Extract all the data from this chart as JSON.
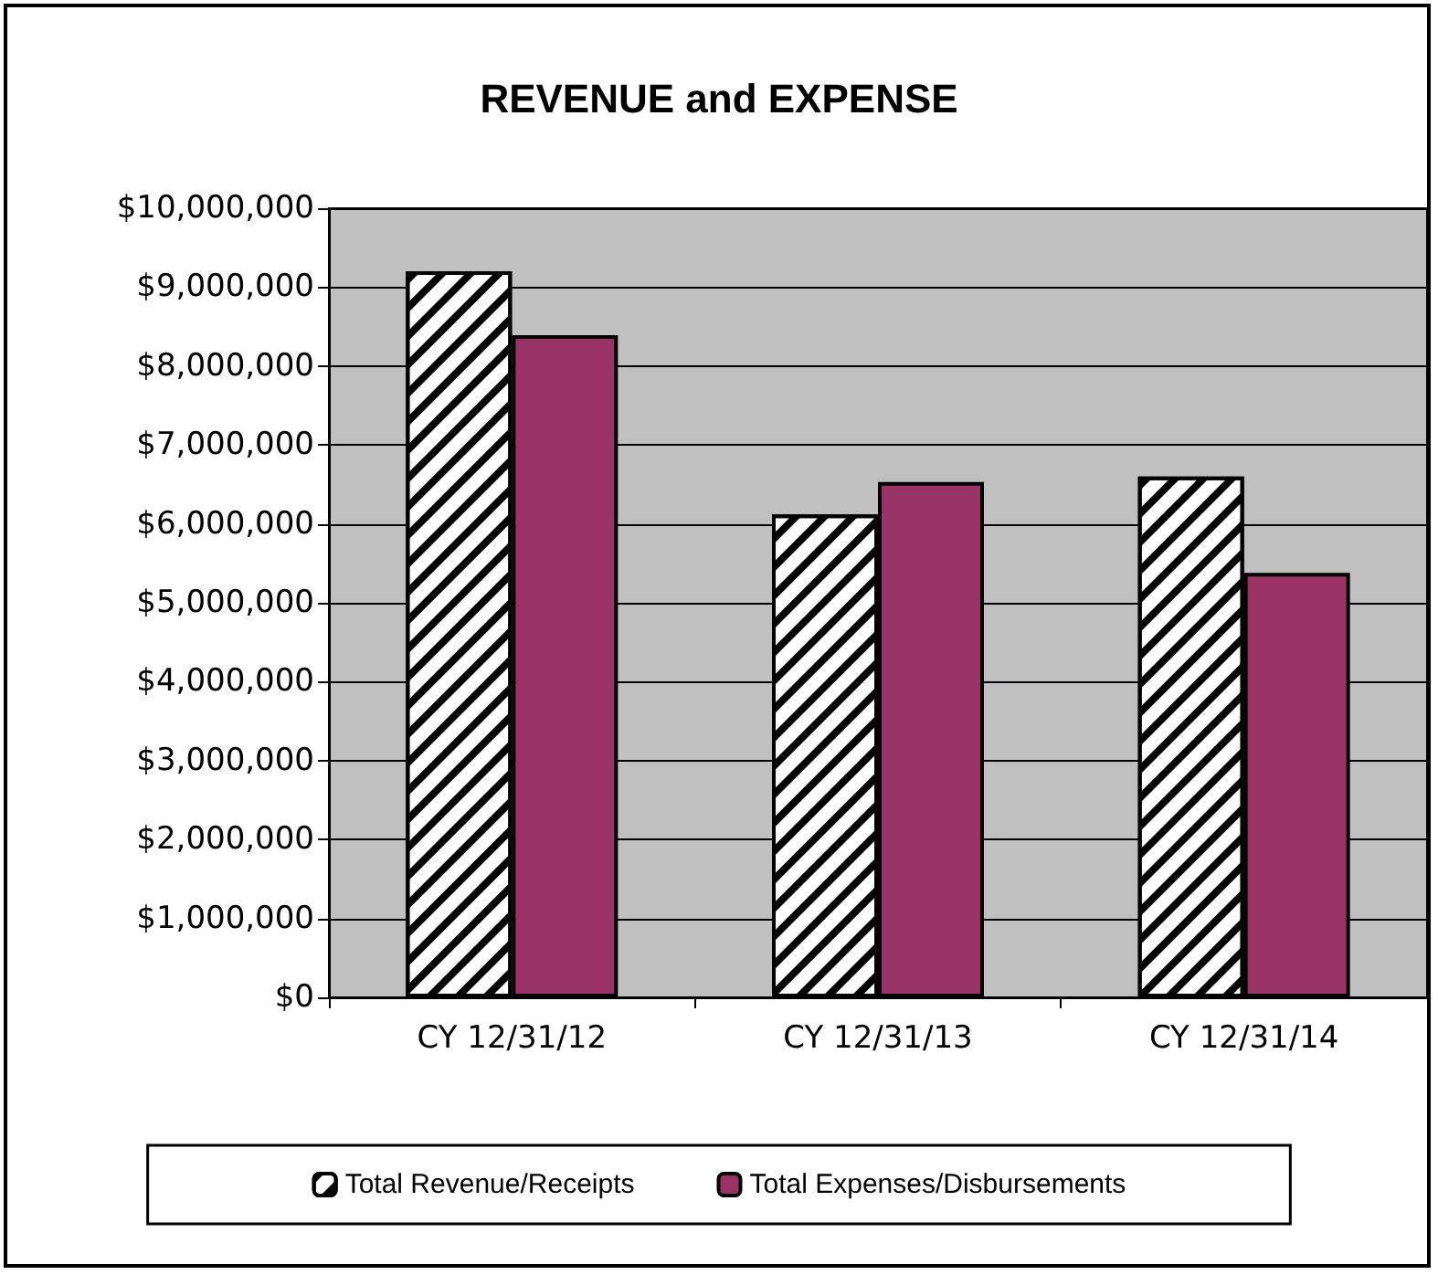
{
  "chart_data": {
    "type": "bar",
    "title": "REVENUE and EXPENSE",
    "categories": [
      "CY 12/31/12",
      "CY 12/31/13",
      "CY 12/31/14"
    ],
    "series": [
      {
        "name": "Total Revenue/Receipts",
        "color": "#ffffff",
        "values": [
          9200000,
          6120000,
          6600000
        ]
      },
      {
        "name": "Total Expenses/Disbursements",
        "color": "#993366",
        "values": [
          8390000,
          6530000,
          5380000
        ]
      }
    ],
    "ylim": [
      0,
      10000000
    ],
    "yticks": [
      {
        "value": 0,
        "label": "$0"
      },
      {
        "value": 1000000,
        "label": "$1,000,000"
      },
      {
        "value": 2000000,
        "label": "$2,000,000"
      },
      {
        "value": 3000000,
        "label": "$3,000,000"
      },
      {
        "value": 4000000,
        "label": "$4,000,000"
      },
      {
        "value": 5000000,
        "label": "$5,000,000"
      },
      {
        "value": 6000000,
        "label": "$6,000,000"
      },
      {
        "value": 7000000,
        "label": "$7,000,000"
      },
      {
        "value": 8000000,
        "label": "$8,000,000"
      },
      {
        "value": 9000000,
        "label": "$9,000,000"
      },
      {
        "value": 10000000,
        "label": "$10,000,000"
      }
    ],
    "grid": "y",
    "legend": "bottom"
  }
}
